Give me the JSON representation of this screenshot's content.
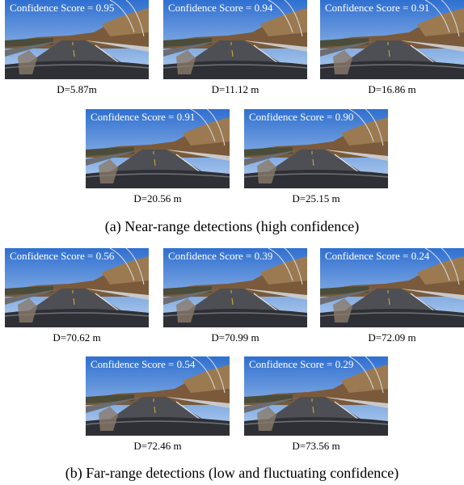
{
  "sections": [
    {
      "caption": "(a) Near-range detections (high confidence)",
      "panels": [
        {
          "confidence": "Confidence Score = 0.95",
          "distance": "D=5.87m"
        },
        {
          "confidence": "Confidence Score = 0.94",
          "distance": "D=11.12 m"
        },
        {
          "confidence": "Confidence Score = 0.91",
          "distance": "D=16.86 m"
        },
        {
          "confidence": "Confidence Score = 0.91",
          "distance": "D=20.56 m"
        },
        {
          "confidence": "Confidence Score = 0.90",
          "distance": "D=25.15 m"
        }
      ]
    },
    {
      "caption": "(b) Far-range detections (low and fluctuating confidence)",
      "panels": [
        {
          "confidence": "Confidence Score = 0.56",
          "distance": "D=70.62 m"
        },
        {
          "confidence": "Confidence Score = 0.39",
          "distance": "D=70.99 m"
        },
        {
          "confidence": "Confidence Score = 0.24",
          "distance": "D=72.09 m"
        },
        {
          "confidence": "Confidence Score = 0.54",
          "distance": "D=72.46 m"
        },
        {
          "confidence": "Confidence Score = 0.29",
          "distance": "D=73.56 m"
        }
      ]
    }
  ]
}
